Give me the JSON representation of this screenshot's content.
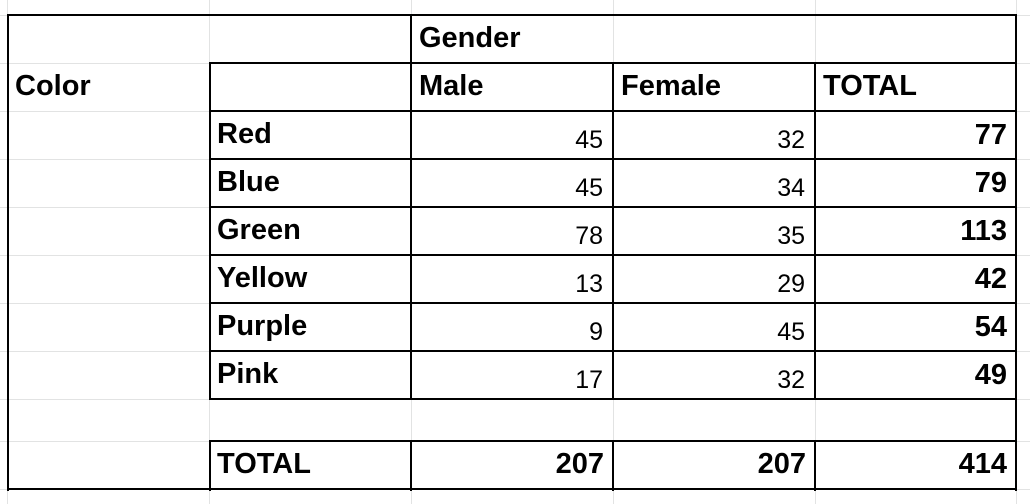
{
  "table": {
    "row_header": "Color",
    "group_header": "Gender",
    "columns": [
      "Male",
      "Female",
      "TOTAL"
    ],
    "rows": [
      {
        "label": "Red",
        "male": "45",
        "female": "32",
        "total": "77"
      },
      {
        "label": "Blue",
        "male": "45",
        "female": "34",
        "total": "79"
      },
      {
        "label": "Green",
        "male": "78",
        "female": "35",
        "total": "113"
      },
      {
        "label": "Yellow",
        "male": "13",
        "female": "29",
        "total": "42"
      },
      {
        "label": "Purple",
        "male": "9",
        "female": "45",
        "total": "54"
      },
      {
        "label": "Pink",
        "male": "17",
        "female": "32",
        "total": "49"
      }
    ],
    "total_row": {
      "label": "TOTAL",
      "male": "207",
      "female": "207",
      "total": "414"
    }
  },
  "colors": {
    "gridline": "#e2e3e3",
    "border": "#000000",
    "background": "#ffffff"
  }
}
